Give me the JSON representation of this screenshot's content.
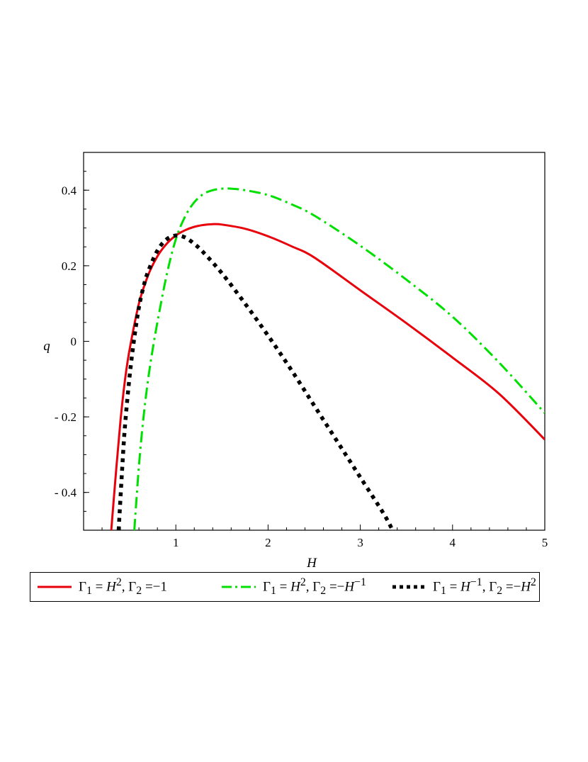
{
  "chart_data": {
    "type": "line",
    "xlabel": "H",
    "ylabel": "q",
    "xlim": [
      0,
      5
    ],
    "ylim": [
      -0.5,
      0.5
    ],
    "xticks": [
      "1",
      "2",
      "3",
      "4",
      "5"
    ],
    "yticks": [
      "0.4",
      "0.2",
      "0",
      "-0.2",
      "-0.4"
    ],
    "grid": false,
    "legend_position": "bottom",
    "series": [
      {
        "name": "Γ₁ = H², Γ₂ = −1",
        "color": "#e8000b",
        "style": "solid",
        "x": [
          0.3,
          0.35,
          0.4,
          0.45,
          0.5,
          0.6,
          0.7,
          0.8,
          0.9,
          1.0,
          1.1,
          1.2,
          1.3,
          1.4,
          1.5,
          1.75,
          2.0,
          2.25,
          2.5,
          3.0,
          3.5,
          4.0,
          4.5,
          5.0
        ],
        "y": [
          -0.5,
          -0.35,
          -0.21,
          -0.1,
          -0.02,
          0.1,
          0.175,
          0.225,
          0.258,
          0.28,
          0.294,
          0.303,
          0.308,
          0.31,
          0.309,
          0.298,
          0.278,
          0.252,
          0.222,
          0.135,
          0.048,
          -0.043,
          -0.138,
          -0.26
        ]
      },
      {
        "name": "Γ₁ = H², Γ₂ = −H⁻¹",
        "color": "#00e000",
        "style": "dashdot",
        "x": [
          0.55,
          0.6,
          0.65,
          0.7,
          0.75,
          0.8,
          0.9,
          1.0,
          1.1,
          1.2,
          1.3,
          1.4,
          1.5,
          1.6,
          1.75,
          2.0,
          2.25,
          2.5,
          3.0,
          3.5,
          4.0,
          4.5,
          5.0
        ],
        "y": [
          -0.5,
          -0.33,
          -0.2,
          -0.1,
          -0.02,
          0.05,
          0.175,
          0.27,
          0.33,
          0.368,
          0.39,
          0.4,
          0.404,
          0.404,
          0.4,
          0.387,
          0.363,
          0.333,
          0.253,
          0.163,
          0.065,
          -0.055,
          -0.19
        ]
      },
      {
        "name": "Γ₁ = H⁻¹, Γ₂ = −H²",
        "color": "#000000",
        "style": "dotted",
        "x": [
          0.38,
          0.42,
          0.45,
          0.5,
          0.55,
          0.6,
          0.65,
          0.7,
          0.8,
          0.9,
          1.0,
          1.1,
          1.2,
          1.3,
          1.5,
          1.75,
          2.0,
          2.25,
          2.5,
          2.75,
          3.0,
          3.25,
          3.35
        ],
        "y": [
          -0.5,
          -0.33,
          -0.22,
          -0.09,
          0.01,
          0.09,
          0.145,
          0.185,
          0.24,
          0.27,
          0.28,
          0.275,
          0.258,
          0.235,
          0.18,
          0.1,
          0.015,
          -0.075,
          -0.17,
          -0.265,
          -0.36,
          -0.455,
          -0.5
        ]
      }
    ]
  },
  "legend": [
    {
      "g1": "Γ",
      "s1": "1",
      "eq1": " = ",
      "v1": "H",
      "p1": "2",
      "sep": ", ",
      "g2": "Γ",
      "s2": "2",
      "eq2": " =",
      "v2": "−1",
      "p2": ""
    },
    {
      "g1": "Γ",
      "s1": "1",
      "eq1": " = ",
      "v1": "H",
      "p1": "2",
      "sep": ", ",
      "g2": "Γ",
      "s2": "2",
      "eq2": " =−",
      "v2": "H",
      "p2": "−1"
    },
    {
      "g1": "Γ",
      "s1": "1",
      "eq1": " = ",
      "v1": "H",
      "p1": "−1",
      "sep": ", ",
      "g2": "Γ",
      "s2": "2",
      "eq2": " =−",
      "v2": "H",
      "p2": "2"
    }
  ]
}
